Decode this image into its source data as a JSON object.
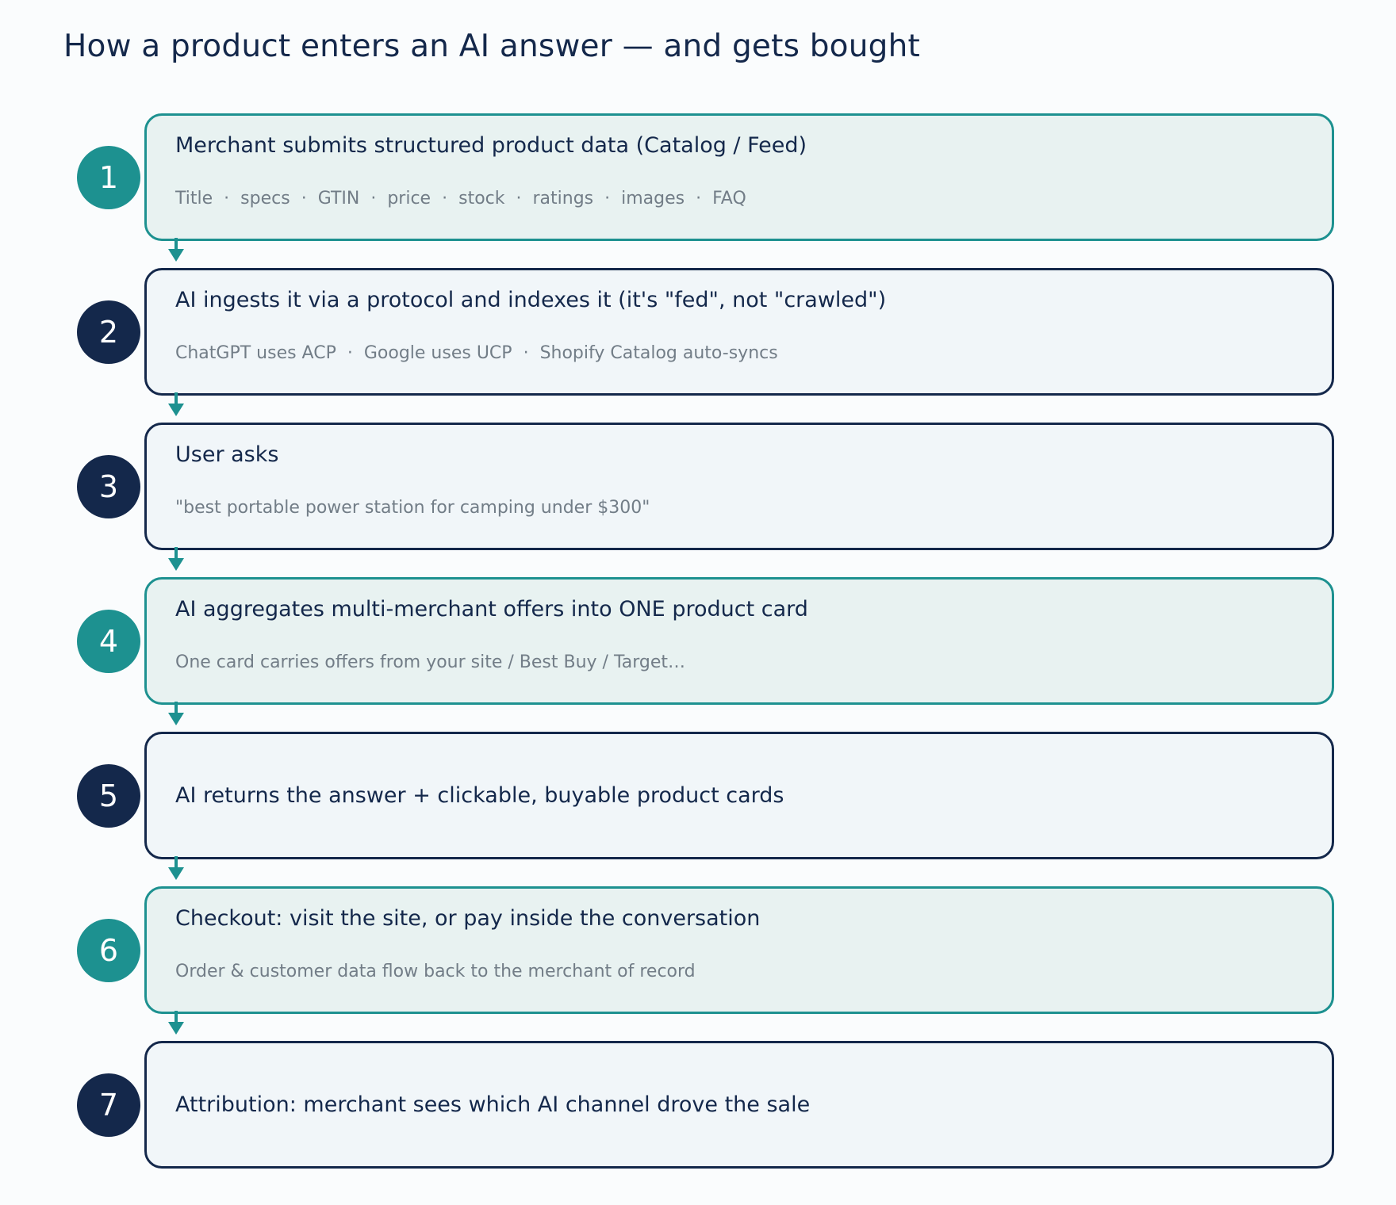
{
  "title": "How a product enters an AI answer — and gets bought",
  "colors": {
    "accent": "#1d9190",
    "dark": "#14284b",
    "accent_fill": "#e8f2f1",
    "dark_fill": "#f1f6f9",
    "detail_text": "#727d87"
  },
  "steps": [
    {
      "number": "1",
      "style": "accent",
      "title": "Merchant submits structured product data (Catalog / Feed)",
      "detail_items": [
        "Title",
        "specs",
        "GTIN",
        "price",
        "stock",
        "ratings",
        "images",
        "FAQ"
      ]
    },
    {
      "number": "2",
      "style": "dark",
      "title": "AI ingests it via a protocol and indexes it (it's \"fed\", not \"crawled\")",
      "detail_items": [
        "ChatGPT uses ACP",
        "Google uses UCP",
        "Shopify Catalog auto-syncs"
      ]
    },
    {
      "number": "3",
      "style": "dark",
      "title": "User asks",
      "detail_items": [
        "\"best portable power station for camping under $300\""
      ]
    },
    {
      "number": "4",
      "style": "accent",
      "title": "AI aggregates multi-merchant offers into ONE product card",
      "detail_items": [
        "One card carries offers from your site / Best Buy / Target…"
      ]
    },
    {
      "number": "5",
      "style": "dark",
      "title": "AI returns the answer + clickable, buyable product cards",
      "detail_items": []
    },
    {
      "number": "6",
      "style": "accent",
      "title": "Checkout: visit the site, or pay inside the conversation",
      "detail_items": [
        "Order & customer data flow back to the merchant of record"
      ]
    },
    {
      "number": "7",
      "style": "dark",
      "title": "Attribution: merchant sees which AI channel drove the sale",
      "detail_items": []
    }
  ],
  "separator": "·"
}
